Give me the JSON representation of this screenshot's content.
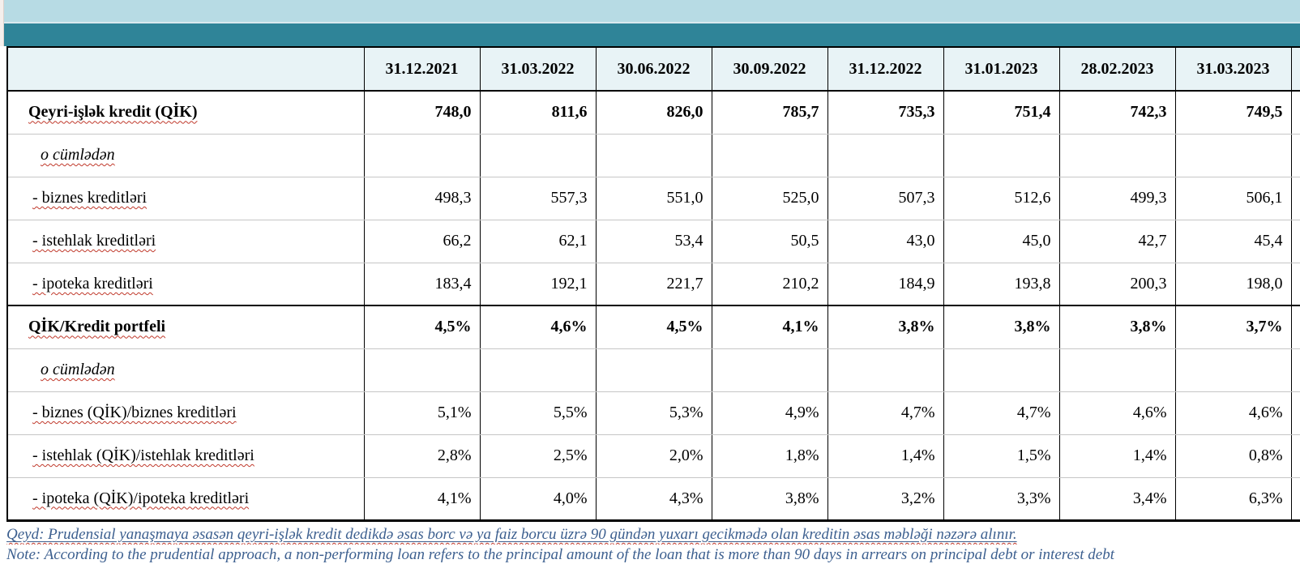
{
  "colors": {
    "top_bar": "#b7dbe4",
    "accent_bar": "#2f8498",
    "header_bg": "#e8f3f6",
    "grid_minor": "#c6c6c6",
    "grid_major": "#000000",
    "note_text": "#3c5f8f",
    "squiggle": "#c0392b"
  },
  "table": {
    "corner": "",
    "header_dates": [
      "31.12.2021",
      "31.03.2022",
      "30.06.2022",
      "30.09.2022",
      "31.12.2022",
      "31.01.2023",
      "28.02.2023",
      "31.03.2023"
    ],
    "rows": [
      {
        "label": "Qeyri-işlək kredit (QİK)",
        "style": "total",
        "section_end": false,
        "values": [
          "748,0",
          "811,6",
          "826,0",
          "785,7",
          "735,3",
          "751,4",
          "742,3",
          "749,5"
        ]
      },
      {
        "label": "o cümlədən",
        "style": "subhead",
        "section_end": false,
        "values": [
          "",
          "",
          "",
          "",
          "",
          "",
          "",
          ""
        ]
      },
      {
        "label": "- biznes kreditləri",
        "style": "item",
        "section_end": false,
        "values": [
          "498,3",
          "557,3",
          "551,0",
          "525,0",
          "507,3",
          "512,6",
          "499,3",
          "506,1"
        ]
      },
      {
        "label": "- istehlak kreditləri",
        "style": "item",
        "section_end": false,
        "values": [
          "66,2",
          "62,1",
          "53,4",
          "50,5",
          "43,0",
          "45,0",
          "42,7",
          "45,4"
        ]
      },
      {
        "label": "- ipoteka kreditləri",
        "style": "item",
        "section_end": true,
        "values": [
          "183,4",
          "192,1",
          "221,7",
          "210,2",
          "184,9",
          "193,8",
          "200,3",
          "198,0"
        ]
      },
      {
        "label": "QİK/Kredit portfeli",
        "style": "total",
        "section_end": false,
        "values": [
          "4,5%",
          "4,6%",
          "4,5%",
          "4,1%",
          "3,8%",
          "3,8%",
          "3,8%",
          "3,7%"
        ]
      },
      {
        "label": "o cümlədən",
        "style": "subhead",
        "section_end": false,
        "values": [
          "",
          "",
          "",
          "",
          "",
          "",
          "",
          ""
        ]
      },
      {
        "label": "- biznes (QİK)/biznes kreditləri",
        "style": "item",
        "section_end": false,
        "values": [
          "5,1%",
          "5,5%",
          "5,3%",
          "4,9%",
          "4,7%",
          "4,7%",
          "4,6%",
          "4,6%"
        ]
      },
      {
        "label": "- istehlak (QİK)/istehlak kreditləri",
        "style": "item",
        "section_end": false,
        "values": [
          "2,8%",
          "2,5%",
          "2,0%",
          "1,8%",
          "1,4%",
          "1,5%",
          "1,4%",
          "0,8%"
        ]
      },
      {
        "label": "- ipoteka (QİK)/ipoteka kreditləri",
        "style": "item",
        "section_end": false,
        "values": [
          "4,1%",
          "4,0%",
          "4,3%",
          "3,8%",
          "3,2%",
          "3,3%",
          "3,4%",
          "6,3%"
        ]
      }
    ]
  },
  "notes": {
    "az": "Qeyd: Prudensial yanaşmaya əsasən qeyri-işlək kredit dedikdə əsas borc və ya faiz borcu üzrə 90 gündən yuxarı gecikmədə olan kreditin əsas məbləği nəzərə alınır.",
    "en": "Note: According to the prudential approach, a non-performing loan refers to the principal amount of the loan that is more than 90 days in arrears on principal debt or interest debt"
  }
}
